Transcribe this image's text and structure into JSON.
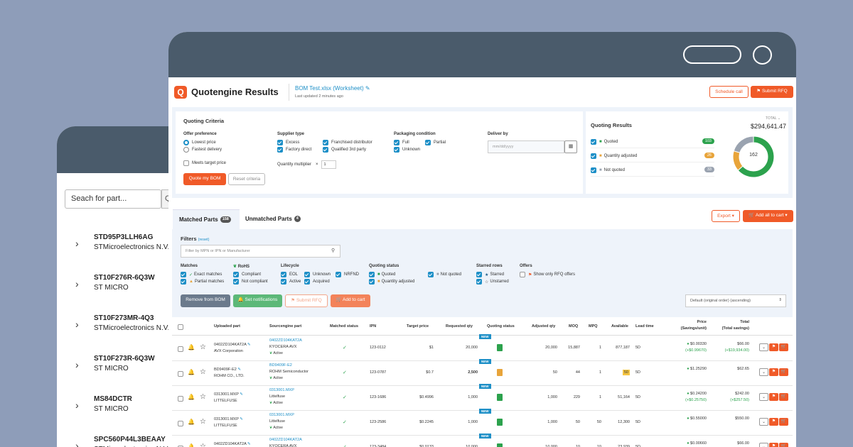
{
  "back": {
    "search_placeholder": "Seach for part...",
    "search_btn": "Q",
    "items": [
      {
        "part": "STD95P3LLH6AG",
        "mfr": "STMicroelectronics N.V."
      },
      {
        "part": "ST10F276R-6Q3W",
        "mfr": "ST MICRO"
      },
      {
        "part": "ST10F273MR-4Q3",
        "mfr": "STMicroelectronics N.V."
      },
      {
        "part": "ST10F273R-6Q3W",
        "mfr": "ST MICRO"
      },
      {
        "part": "MS84DCTR",
        "mfr": "ST MICRO"
      },
      {
        "part": "SPC560P44L3BEAAY",
        "mfr": "STMicroelectronics N.V."
      }
    ]
  },
  "header": {
    "logo": "Q",
    "title": "Quotengine Results",
    "file_name": "BOM Test.xlsx (Worksheet)",
    "last_updated": "Last updated 2 minutes ago",
    "schedule_call": "Schedule call",
    "submit_rfq": "Submit RFQ"
  },
  "criteria": {
    "title": "Quoting Criteria",
    "offer_pref": {
      "label": "Offer preference",
      "options": [
        "Lowest price",
        "Fastest delivery"
      ]
    },
    "meets_target": "Meets target price",
    "supplier_type": {
      "label": "Supplier type",
      "options": [
        "Excess",
        "Factory direct",
        "Franchised distributor",
        "Qualified 3rd party"
      ]
    },
    "qty_multiplier": {
      "label": "Quantity multiplier",
      "x": "×",
      "value": "1"
    },
    "packaging": {
      "label": "Packaging condition",
      "options": [
        "Full",
        "Unknown",
        "Partial"
      ]
    },
    "deliver_by": {
      "label": "Deliver by",
      "placeholder": "mm/dd/yyyy"
    },
    "quote_btn": "Quote my BOM",
    "reset_btn": "Reset criteria"
  },
  "results": {
    "title": "Quoting Results",
    "total_label": "TOTAL",
    "total": "$294,641.47",
    "rows": [
      {
        "label": "Quoted",
        "count": "103",
        "color": "#2ca24d"
      },
      {
        "label": "Quantity adjusted",
        "count": "26",
        "color": "#e8a43a"
      },
      {
        "label": "Not quoted",
        "count": "33",
        "color": "#9aa3b0"
      }
    ],
    "donut_center": "162",
    "donut": [
      103,
      26,
      33
    ]
  },
  "tabs": {
    "matched": {
      "label": "Matched Parts",
      "count": "158"
    },
    "unmatched": {
      "label": "Unmatched Parts",
      "count": "4"
    },
    "export": "Export",
    "add_all": "Add all to cart"
  },
  "filters": {
    "title": "Filters",
    "reset": "(reset)",
    "search_placeholder": "Filter by MPN or IPN or Manufacturer",
    "matches": {
      "label": "Matches",
      "options": [
        "Exact matches",
        "Partial matches"
      ]
    },
    "rohs": {
      "label": "RoHS",
      "options": [
        "Compliant",
        "Not compliant"
      ]
    },
    "lifecycle": {
      "label": "Lifecycle",
      "options": [
        "EOL",
        "Active",
        "Unknown",
        "Acquired",
        "NRFND"
      ]
    },
    "quoting_status": {
      "label": "Quoting status",
      "options": [
        "Quoted",
        "Quantity adjusted",
        "Not quoted"
      ]
    },
    "starred": {
      "label": "Starred rows",
      "options": [
        "Starred",
        "Unstarred"
      ]
    },
    "offers": {
      "label": "Offers",
      "options": [
        "Show only RFQ offers"
      ]
    }
  },
  "actions": {
    "remove": "Remove from BOM",
    "notifications": "Set notifications",
    "submit_rfq": "Submit RFQ",
    "add_cart": "Add to cart",
    "sort": "Default (original order) (ascending)"
  },
  "table": {
    "headers": [
      "Uploaded part",
      "Sourcengine part",
      "Matched status",
      "IPN",
      "Target price",
      "Requested qty",
      "Quoting status",
      "Adjusted qty",
      "MOQ",
      "MPQ",
      "Available",
      "Lead time",
      "Price",
      "(Savings/unit)",
      "Total",
      "(Total savings)"
    ],
    "rows": [
      {
        "up": "0402ZD104KAT2A",
        "upm": "AVX Corporation",
        "sp": "0402ZD104KAT2A",
        "spm": "KYOCERA AVX",
        "life": "Active",
        "ipn": "123-0112",
        "tp": "$1",
        "rq": "20,000",
        "qs": "quoted",
        "aq": "20,000",
        "moq": "15,887",
        "mpq": "1",
        "avail": "877,187",
        "lead": "5D",
        "price": "$0.00330",
        "save": "(+$0.99670)",
        "total": "$66.00",
        "tsave": "(+$19,934.00)"
      },
      {
        "up": "BD9409F-E2",
        "upm": "ROHM CO., LTD.",
        "sp": "BD9409F-E2",
        "spm": "ROHM Semiconductor",
        "life": "Active",
        "ipn": "123-0787",
        "tp": "$0.7",
        "rq": "2,500",
        "qs": "adjusted",
        "aq": "50",
        "moq": "44",
        "mpq": "1",
        "avail": "50",
        "lead": "5D",
        "price": "$1.25290",
        "save": "",
        "total": "$62.65",
        "tsave": ""
      },
      {
        "up": "0313001.MXP",
        "upm": "LITTELFUSE",
        "sp": "0313001.MXP",
        "spm": "Littelfuse",
        "life": "Active",
        "ipn": "123-1686",
        "tp": "$0.4996",
        "rq": "1,000",
        "qs": "quoted",
        "aq": "1,000",
        "moq": "229",
        "mpq": "1",
        "avail": "51,164",
        "lead": "5D",
        "price": "$0.24200",
        "save": "(+$0.25750)",
        "total": "$242.00",
        "tsave": "(+$257.50)"
      },
      {
        "up": "0313001.MXP",
        "upm": "LITTELFUSE",
        "sp": "0313001.MXP",
        "spm": "Littelfuse",
        "life": "Active",
        "ipn": "123-2586",
        "tp": "$0.2245",
        "rq": "1,000",
        "qs": "quoted",
        "aq": "1,000",
        "moq": "50",
        "mpq": "50",
        "avail": "12,300",
        "lead": "5D",
        "price": "$0.55000",
        "save": "",
        "total": "$550.00",
        "tsave": ""
      },
      {
        "up": "0402ZD104KAT2A",
        "upm": "AVX Corporation",
        "sp": "0402ZD104KAT2A",
        "spm": "KYOCERA AVX",
        "life": "Active",
        "ipn": "123-3484",
        "tp": "$0.0133",
        "rq": "10,000",
        "qs": "quoted",
        "aq": "10,000",
        "moq": "10",
        "mpq": "10",
        "avail": "23,939",
        "lead": "5D",
        "price": "$0.00660",
        "save": "",
        "total": "$66.00",
        "tsave": ""
      }
    ],
    "new_label": "NEW"
  }
}
